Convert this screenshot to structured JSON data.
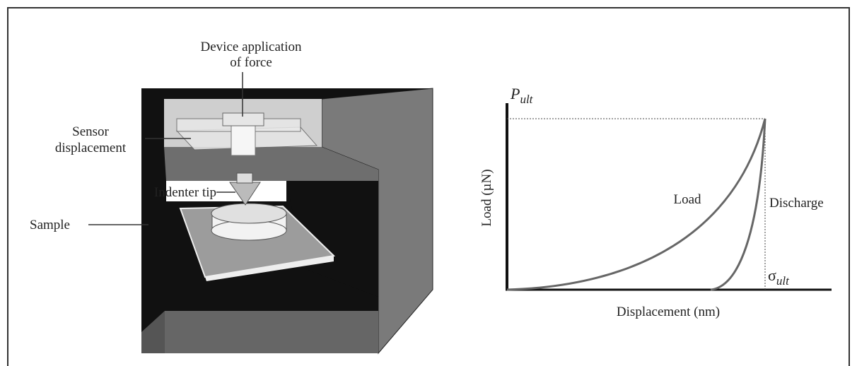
{
  "device": {
    "force_label": [
      "Device application",
      "of force"
    ],
    "sensor_label": [
      "Sensor",
      "displacement"
    ],
    "tip_label": "Indenter tip",
    "sample_label": "Sample"
  },
  "graph": {
    "y_max_label": {
      "symbol": "P",
      "subscript": "ult"
    },
    "y_axis_label": "Load (µN)",
    "x_axis_label": "Displacement (nm)",
    "load_label": "Load",
    "discharge_label": "Discharge",
    "x_max_label": {
      "symbol": "σ",
      "subscript": "ult"
    }
  }
}
